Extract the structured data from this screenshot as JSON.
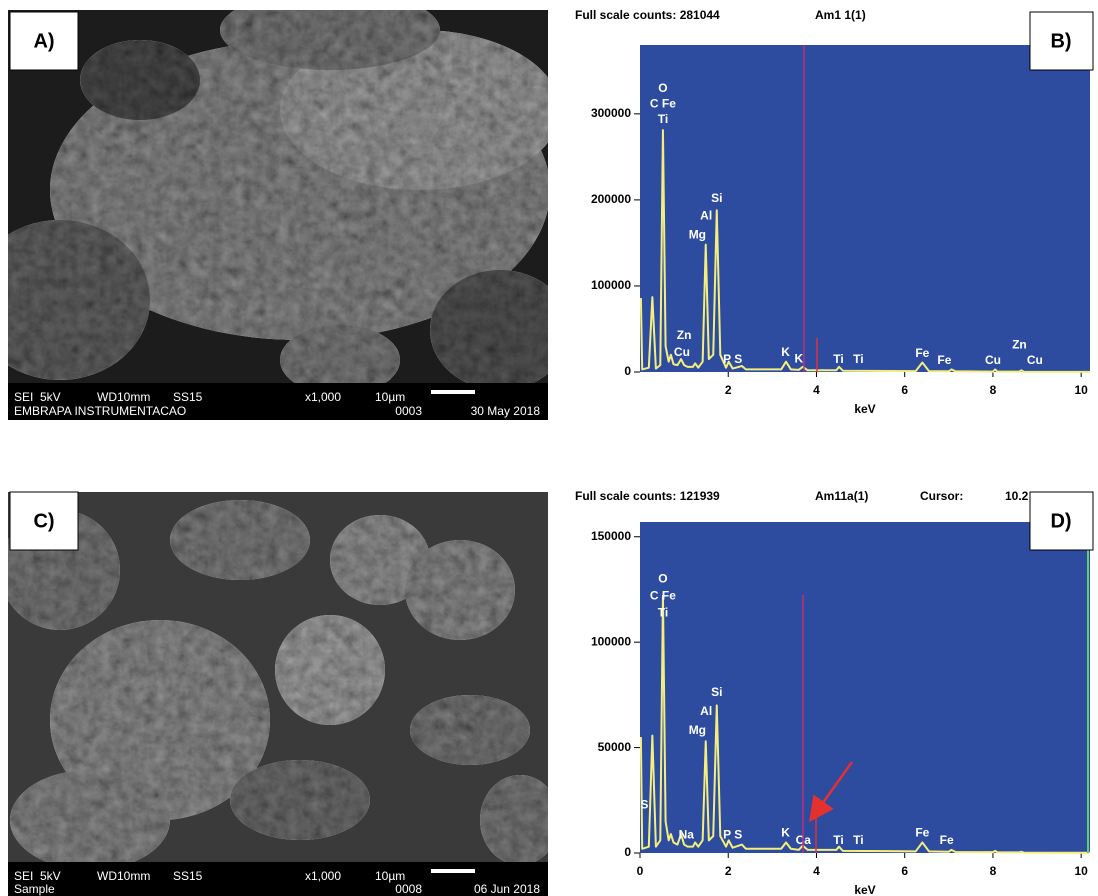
{
  "panels": [
    {
      "label": "A)",
      "image": {
        "info": [
          "SEI",
          "5kV",
          "WD10mm",
          "SS15",
          "x1,000",
          "10µm"
        ],
        "sample": "EMBRAPA INSTRUMENTACAO",
        "number": "0003",
        "date": "30 May 2018"
      }
    },
    {
      "label": "C)",
      "image": {
        "info": [
          "SEI",
          "5kV",
          "WD10mm",
          "SS15",
          "x1,000",
          "10µm"
        ],
        "sample": "Sample",
        "number": "0008",
        "date": "06 Jun 2018"
      }
    }
  ],
  "chart_data": [
    {
      "type": "line",
      "label": "B)",
      "header": [
        "Full scale counts: 281044",
        "Am1 1(1)"
      ],
      "xlabel": "keV",
      "background": "#2d4b9f",
      "x": [
        0.02,
        0.05,
        0.2,
        0.28,
        0.36,
        0.46,
        0.52,
        0.58,
        0.65,
        0.7,
        0.76,
        0.85,
        0.93,
        1.0,
        1.08,
        1.2,
        1.25,
        1.32,
        1.42,
        1.49,
        1.56,
        1.66,
        1.74,
        1.82,
        1.95,
        2.01,
        2.1,
        2.31,
        2.4,
        3.2,
        3.31,
        3.42,
        3.6,
        3.69,
        3.8,
        4.45,
        4.51,
        4.6,
        6.25,
        6.4,
        6.55,
        7.0,
        7.06,
        7.15,
        8.0,
        8.05,
        8.1,
        8.6,
        8.64,
        8.7,
        10.2
      ],
      "series": [
        {
          "color": "#f4ef7c",
          "values": [
            86000,
            3000,
            5000,
            87000,
            4000,
            8000,
            281044,
            30000,
            12000,
            20000,
            9000,
            8000,
            15000,
            8000,
            6000,
            6000,
            10000,
            5000,
            12000,
            148000,
            15000,
            20000,
            188000,
            20000,
            5000,
            12000,
            4000,
            7000,
            3000,
            3000,
            12000,
            3000,
            2500,
            6000,
            2000,
            2000,
            6000,
            1500,
            1000,
            11000,
            1000,
            800,
            3000,
            800,
            500,
            3000,
            500,
            500,
            2000,
            300,
            200
          ]
        }
      ],
      "xlim": [
        0,
        10.2
      ],
      "ylim": [
        0,
        380000
      ],
      "xticks": [
        2,
        4,
        6,
        8,
        10
      ],
      "yticks": [
        0,
        100000,
        200000,
        300000
      ],
      "annotations": [
        {
          "text": "O",
          "x": 0.52,
          "y": 329000
        },
        {
          "text": "C Fe",
          "x": 0.52,
          "y": 311000
        },
        {
          "text": "Ti",
          "x": 0.52,
          "y": 293000
        },
        {
          "text": "Si",
          "x": 1.74,
          "y": 201000
        },
        {
          "text": "Al",
          "x": 1.5,
          "y": 181000
        },
        {
          "text": "Mg",
          "x": 1.3,
          "y": 159000
        },
        {
          "text": "Zn",
          "x": 1.0,
          "y": 42000
        },
        {
          "text": "Cu",
          "x": 0.95,
          "y": 22000
        },
        {
          "text": "P S",
          "x": 2.1,
          "y": 14000
        },
        {
          "text": "K",
          "x": 3.3,
          "y": 22000
        },
        {
          "text": "K",
          "x": 3.6,
          "y": 15000
        },
        {
          "text": "Ti",
          "x": 4.5,
          "y": 14000
        },
        {
          "text": "Ti",
          "x": 4.95,
          "y": 14000
        },
        {
          "text": "Fe",
          "x": 6.4,
          "y": 21000
        },
        {
          "text": "Fe",
          "x": 6.9,
          "y": 13000
        },
        {
          "text": "Cu",
          "x": 8.0,
          "y": 13000
        },
        {
          "text": "Zn",
          "x": 8.6,
          "y": 31000
        },
        {
          "text": "Cu",
          "x": 8.95,
          "y": 13000
        }
      ]
    },
    {
      "type": "line",
      "label": "D)",
      "header": [
        "Full scale counts: 121939",
        "Am11a(1)",
        "Cursor:",
        "10.2"
      ],
      "xlabel": "keV",
      "background": "#2d4b9f",
      "x": [
        0.02,
        0.05,
        0.2,
        0.28,
        0.36,
        0.46,
        0.52,
        0.58,
        0.65,
        0.7,
        0.76,
        0.85,
        0.93,
        1.0,
        1.08,
        1.2,
        1.25,
        1.32,
        1.42,
        1.49,
        1.56,
        1.66,
        1.74,
        1.82,
        1.95,
        2.01,
        2.1,
        2.31,
        2.4,
        3.2,
        3.31,
        3.42,
        3.6,
        3.69,
        3.8,
        4.45,
        4.51,
        4.6,
        6.25,
        6.4,
        6.55,
        7.0,
        7.06,
        7.15,
        8.0,
        8.05,
        8.1,
        8.6,
        8.64,
        8.7,
        10.2
      ],
      "series": [
        {
          "color": "#f4ef7c",
          "values": [
            55000,
            2000,
            3000,
            55700,
            3000,
            6000,
            121939,
            15000,
            6000,
            9000,
            5000,
            4000,
            9000,
            4000,
            3000,
            3000,
            5000,
            3000,
            6000,
            53000,
            6000,
            8000,
            70000,
            8000,
            3000,
            6000,
            2500,
            4000,
            2000,
            2000,
            5000,
            2000,
            1500,
            3500,
            1500,
            1500,
            3000,
            1000,
            800,
            5000,
            800,
            600,
            1500,
            500,
            400,
            1000,
            300,
            300,
            600,
            200,
            100
          ]
        }
      ],
      "xlim": [
        0,
        10.2
      ],
      "ylim": [
        0,
        157000
      ],
      "xticks": [
        0,
        2,
        4,
        6,
        8,
        10
      ],
      "yticks": [
        0,
        50000,
        100000,
        150000
      ],
      "annotations": [
        {
          "text": "O",
          "x": 0.52,
          "y": 129700
        },
        {
          "text": "C Fe",
          "x": 0.52,
          "y": 121700
        },
        {
          "text": "Ti",
          "x": 0.52,
          "y": 113700
        },
        {
          "text": "Si",
          "x": 1.74,
          "y": 76000
        },
        {
          "text": "Al",
          "x": 1.5,
          "y": 67000
        },
        {
          "text": "Mg",
          "x": 1.3,
          "y": 58000
        },
        {
          "text": "S",
          "x": 0.1,
          "y": 22600
        },
        {
          "text": "Na",
          "x": 1.05,
          "y": 8500
        },
        {
          "text": "P S",
          "x": 2.1,
          "y": 8500
        },
        {
          "text": "K",
          "x": 3.3,
          "y": 9400
        },
        {
          "text": "Ca",
          "x": 3.7,
          "y": 5700
        },
        {
          "text": "Ti",
          "x": 4.5,
          "y": 5700
        },
        {
          "text": "Ti",
          "x": 4.95,
          "y": 5700
        },
        {
          "text": "Fe",
          "x": 6.4,
          "y": 9400
        },
        {
          "text": "Fe",
          "x": 6.95,
          "y": 5700
        }
      ]
    }
  ]
}
